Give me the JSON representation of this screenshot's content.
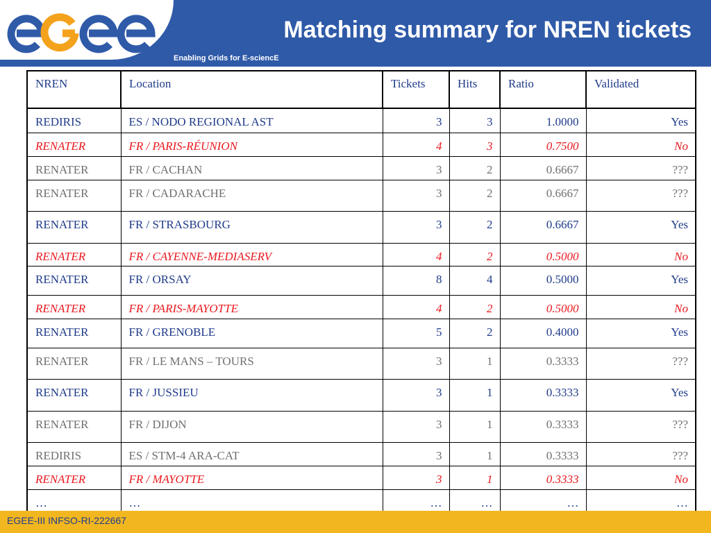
{
  "header": {
    "logo_text": "egee",
    "title": "Matching summary for NREN tickets",
    "subtitle": "Enabling Grids for E-sciencE"
  },
  "colors": {
    "header_blue": "#2f5aa8",
    "footer_gold": "#f2b61f",
    "validated_yes": "#1f3b8a",
    "validated_no": "#e8191f",
    "validated_unknown": "#6f6f6f",
    "logo_blue": "#2f5aa8",
    "logo_orange": "#f4a21c"
  },
  "table": {
    "columns": [
      "NREN",
      "Location",
      "Tickets",
      "Hits",
      "Ratio",
      "Validated"
    ],
    "rows": [
      {
        "status": "yes",
        "cells": [
          "REDIRIS",
          "ES / NODO REGIONAL AST",
          "3",
          "3",
          "1.0000",
          "Yes"
        ]
      },
      {
        "status": "no",
        "cells": [
          "RENATER",
          "FR / PARIS-RÉUNION",
          "4",
          "3",
          "0.7500",
          "No"
        ]
      },
      {
        "status": "unknown",
        "cells": [
          "RENATER",
          "FR / CACHAN",
          "3",
          "2",
          "0.6667",
          "???"
        ]
      },
      {
        "status": "unknown",
        "cells": [
          "RENATER",
          "FR / CADARACHE",
          "3",
          "2",
          "0.6667",
          "???"
        ]
      },
      {
        "status": "yes",
        "cells": [
          "RENATER",
          "FR / STRASBOURG",
          "3",
          "2",
          "0.6667",
          "Yes"
        ]
      },
      {
        "status": "no",
        "cells": [
          "RENATER",
          "FR / CAYENNE-MEDIASERV",
          "4",
          "2",
          "0.5000",
          "No"
        ]
      },
      {
        "status": "yes",
        "cells": [
          "RENATER",
          "FR / ORSAY",
          "8",
          "4",
          "0.5000",
          "Yes"
        ]
      },
      {
        "status": "no",
        "cells": [
          "RENATER",
          "FR / PARIS-MAYOTTE",
          "4",
          "2",
          "0.5000",
          "No"
        ]
      },
      {
        "status": "yes",
        "cells": [
          "RENATER",
          "FR / GRENOBLE",
          "5",
          "2",
          "0.4000",
          "Yes"
        ]
      },
      {
        "status": "unknown",
        "cells": [
          "RENATER",
          "FR / LE MANS – TOURS",
          "3",
          "1",
          "0.3333",
          "???"
        ]
      },
      {
        "status": "yes",
        "cells": [
          "RENATER",
          "FR / JUSSIEU",
          "3",
          "1",
          "0.3333",
          "Yes"
        ]
      },
      {
        "status": "unknown",
        "cells": [
          "RENATER",
          "FR / DIJON",
          "3",
          "1",
          "0.3333",
          "???"
        ]
      },
      {
        "status": "unknown",
        "cells": [
          "REDIRIS",
          "ES / STM-4 ARA-CAT",
          "3",
          "1",
          "0.3333",
          "???"
        ]
      },
      {
        "status": "no",
        "cells": [
          "RENATER",
          "FR / MAYOTTE",
          "3",
          "1",
          "0.3333",
          "No"
        ]
      },
      {
        "status": "more",
        "cells": [
          "…",
          "…",
          "…",
          "…",
          "…",
          "…"
        ]
      }
    ]
  },
  "footer": {
    "text": "EGEE-III INFSO-RI-222667"
  }
}
